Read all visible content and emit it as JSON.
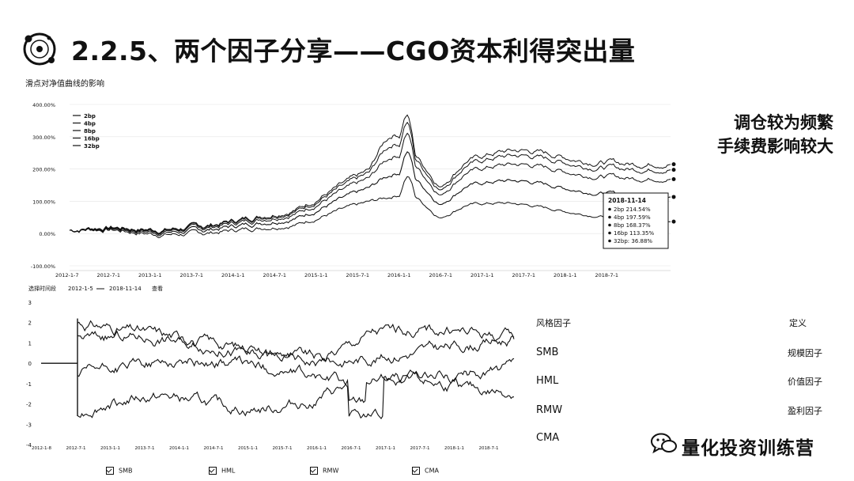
{
  "title": "2.2.5、两个因子分享——CGO资本利得突出量",
  "side_note": [
    "调仓较为频繁",
    "手续费影响较大"
  ],
  "watermark": "量化投资训练营",
  "chart_data": [
    {
      "type": "line",
      "title": "滑点对净值曲线的影响",
      "y_ticks": [
        "400.00%",
        "300.00%",
        "200.00%",
        "100.00%",
        "0.00%",
        "-100.00%"
      ],
      "ylim": [
        -100,
        400
      ],
      "x_ticks": [
        "2012-1-7",
        "2012-7-1",
        "2013-1-1",
        "2013-7-1",
        "2014-1-1",
        "2014-7-1",
        "2015-1-1",
        "2015-7-1",
        "2016-1-1",
        "2016-7-1",
        "2017-1-1",
        "2017-7-1",
        "2018-1-1",
        "2018-7-1"
      ],
      "legend": [
        "2bp",
        "4bp",
        "8bp",
        "16bp",
        "32bp"
      ],
      "legend_position": "top-left",
      "series": [
        {
          "name": "2bp",
          "final": 214.54
        },
        {
          "name": "4bp",
          "final": 197.59
        },
        {
          "name": "8bp",
          "final": 168.37
        },
        {
          "name": "16bp",
          "final": 113.35
        },
        {
          "name": "32bp",
          "final": 36.88
        }
      ],
      "tooltip": {
        "date": "2018-11-14",
        "rows": [
          "2bp  214.54%",
          "4bp  197.59%",
          "8bp  168.37%",
          "16bp  113.35%",
          "32bp: 36.88%"
        ]
      }
    },
    {
      "type": "line",
      "header": {
        "label": "选择时间段",
        "start": "2012-1-5",
        "end": "2018-11-14",
        "link": "查看"
      },
      "y_ticks": [
        "3",
        "2",
        "1",
        "0",
        "-1",
        "-2",
        "-3",
        "-4"
      ],
      "ylim": [
        -4,
        3
      ],
      "x_ticks": [
        "2012-1-8",
        "2012-7-1",
        "2013-1-1",
        "2013-7-1",
        "2014-1-1",
        "2014-7-1",
        "2015-1-1",
        "2015-7-1",
        "2016-1-1",
        "2016-7-1",
        "2017-1-1",
        "2017-7-1",
        "2018-1-1",
        "2018-7-1"
      ],
      "legend": [
        "SMB",
        "HML",
        "RMW",
        "CMA"
      ]
    }
  ],
  "factor_table": {
    "header": {
      "left": "风格因子",
      "right": "定义"
    },
    "rows": [
      {
        "name": "SMB",
        "definition": "规模因子"
      },
      {
        "name": "HML",
        "definition": "价值因子"
      },
      {
        "name": "RMW",
        "definition": "盈利因子"
      },
      {
        "name": "CMA",
        "definition": ""
      }
    ]
  }
}
